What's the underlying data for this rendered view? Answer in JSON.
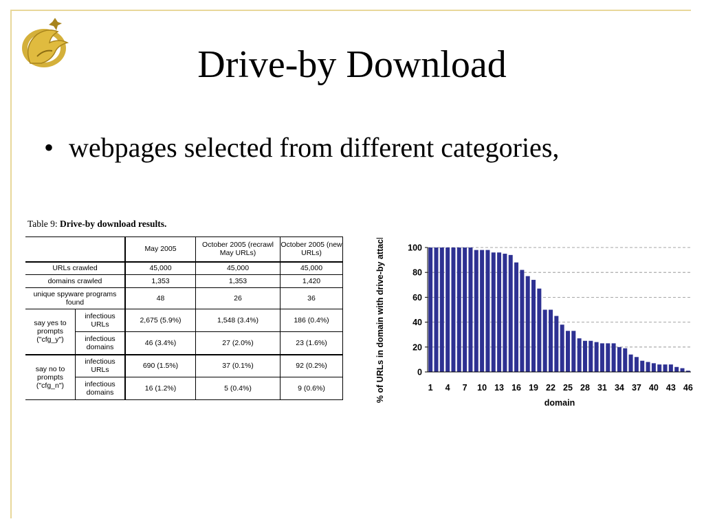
{
  "slide": {
    "title": "Drive-by Download",
    "bullet": "webpages selected from different categories,"
  },
  "table": {
    "caption_prefix": "Table 9:",
    "caption_title": "Drive-by download results.",
    "headers": [
      "May 2005",
      "October 2005 (recrawl May URLs)",
      "October 2005 (new URLs)"
    ],
    "rows": {
      "urls": {
        "label": "URLs crawled",
        "values": [
          "45,000",
          "45,000",
          "45,000"
        ]
      },
      "domains": {
        "label": "domains crawled",
        "values": [
          "1,353",
          "1,353",
          "1,420"
        ]
      },
      "spyware": {
        "label": "unique spyware programs found",
        "values": [
          "48",
          "26",
          "36"
        ]
      },
      "yes_group": "say yes to prompts (\"cfg_y\")",
      "yes_urls": {
        "label": "infectious URLs",
        "values": [
          "2,675 (5.9%)",
          "1,548 (3.4%)",
          "186 (0.4%)"
        ]
      },
      "yes_domains": {
        "label": "infectious domains",
        "values": [
          "46 (3.4%)",
          "27 (2.0%)",
          "23 (1.6%)"
        ]
      },
      "no_group": "say no to prompts (\"cfg_n\")",
      "no_urls": {
        "label": "infectious URLs",
        "values": [
          "690 (1.5%)",
          "37 (0.1%)",
          "92 (0.2%)"
        ]
      },
      "no_domains": {
        "label": "infectious domains",
        "values": [
          "16 (1.2%)",
          "5 (0.4%)",
          "9 (0.6%)"
        ]
      }
    }
  },
  "chart_data": {
    "type": "bar",
    "title": "",
    "xlabel": "domain",
    "ylabel": "% of URLs in domain with drive-by attacks",
    "ylim": [
      0,
      100
    ],
    "yticks": [
      0,
      20,
      40,
      60,
      80,
      100
    ],
    "xtick_labels": [
      "1",
      "4",
      "7",
      "10",
      "13",
      "16",
      "19",
      "22",
      "25",
      "28",
      "31",
      "34",
      "37",
      "40",
      "43",
      "46"
    ],
    "grid": "horizontal dashed",
    "bar_color": "#2e3192",
    "categories": [
      1,
      2,
      3,
      4,
      5,
      6,
      7,
      8,
      9,
      10,
      11,
      12,
      13,
      14,
      15,
      16,
      17,
      18,
      19,
      20,
      21,
      22,
      23,
      24,
      25,
      26,
      27,
      28,
      29,
      30,
      31,
      32,
      33,
      34,
      35,
      36,
      37,
      38,
      39,
      40,
      41,
      42,
      43,
      44,
      45,
      46
    ],
    "values": [
      100,
      100,
      100,
      100,
      100,
      100,
      100,
      100,
      98,
      98,
      98,
      96,
      96,
      95,
      94,
      88,
      82,
      77,
      74,
      67,
      50,
      50,
      45,
      38,
      33,
      33,
      27,
      25,
      25,
      24,
      23,
      23,
      23,
      20,
      19,
      14,
      12,
      9,
      8,
      7,
      6,
      6,
      6,
      4,
      3,
      1
    ]
  }
}
